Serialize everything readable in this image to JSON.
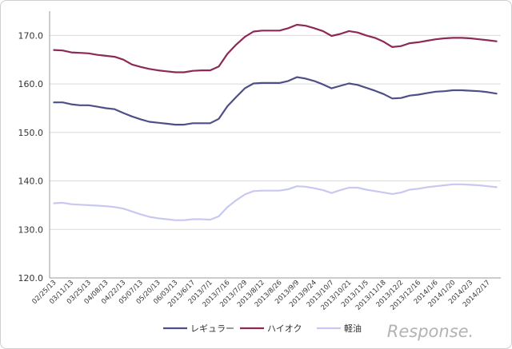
{
  "chart_data": {
    "type": "line",
    "title": "",
    "xlabel": "",
    "ylabel": "",
    "ylim": [
      120,
      175
    ],
    "yticks": [
      120.0,
      130.0,
      140.0,
      150.0,
      160.0,
      170.0
    ],
    "ytick_labels": [
      "120.0",
      "130.0",
      "140.0",
      "150.0",
      "160.0",
      "170.0"
    ],
    "grid": "horizontal",
    "legend_position": "bottom",
    "categories": [
      "02/25/13",
      "03/04/13",
      "03/11/13",
      "03/18/13",
      "03/25/13",
      "04/01/13",
      "04/08/13",
      "04/15/13",
      "04/22/13",
      "04/29/13",
      "05/07/13",
      "05/13/13",
      "05/20/13",
      "05/27/13",
      "06/03/13",
      "06/10/13",
      "2013/6/17",
      "2013/6/24",
      "2013/7/1",
      "2013/7/8",
      "2013/7/16",
      "2013/7/22",
      "2013/7/29",
      "2013/8/5",
      "2013/8/12",
      "2013/8/19",
      "2013/8/26",
      "2013/9/2",
      "2013/9/9",
      "2013/9/17",
      "2013/9/24",
      "2013/10/1",
      "2013/10/7",
      "2013/10/15",
      "2013/10/21",
      "2013/10/28",
      "2013/11/5",
      "2013/11/11",
      "2013/11/18",
      "2013/11/25",
      "2013/12/2",
      "2013/12/9",
      "2013/12/16",
      "2013/12/24",
      "2014/1/6",
      "2014/1/14",
      "2014/1/20",
      "2014/1/27",
      "2014/2/3",
      "2014/2/10",
      "2014/2/17",
      "2014/2/24"
    ],
    "xtick_labels": [
      "02/25/13",
      "03/11/13",
      "03/25/13",
      "04/08/13",
      "04/22/13",
      "05/07/13",
      "05/20/13",
      "06/03/13",
      "2013/6/17",
      "2013/7/1",
      "2013/7/16",
      "2013/7/29",
      "2013/8/12",
      "2013/8/26",
      "2013/9/9",
      "2013/9/24",
      "2013/10/7",
      "2013/10/21",
      "2013/11/5",
      "2013/11/18",
      "2013/12/2",
      "2013/12/16",
      "2014/1/6",
      "2014/1/20",
      "2014/2/3",
      "2014/2/17"
    ],
    "series": [
      {
        "name": "レギュラー",
        "color": "#4f4f87",
        "values": [
          156.2,
          156.2,
          155.8,
          155.6,
          155.6,
          155.3,
          155.0,
          154.8,
          154.0,
          153.3,
          152.7,
          152.2,
          152.0,
          151.8,
          151.6,
          151.6,
          151.9,
          151.9,
          151.9,
          152.8,
          155.4,
          157.3,
          159.1,
          160.1,
          160.2,
          160.2,
          160.2,
          160.6,
          161.4,
          161.1,
          160.6,
          159.9,
          159.1,
          159.6,
          160.1,
          159.8,
          159.2,
          158.6,
          157.9,
          157.0,
          157.1,
          157.6,
          157.8,
          158.1,
          158.4,
          158.5,
          158.7,
          158.7,
          158.6,
          158.5,
          158.3,
          158.0
        ]
      },
      {
        "name": "ハイオク",
        "color": "#8c2a55",
        "values": [
          167.0,
          166.9,
          166.5,
          166.4,
          166.3,
          166.0,
          165.8,
          165.6,
          165.0,
          164.0,
          163.5,
          163.1,
          162.8,
          162.6,
          162.4,
          162.4,
          162.7,
          162.8,
          162.8,
          163.6,
          166.2,
          168.1,
          169.7,
          170.8,
          171.0,
          171.0,
          171.0,
          171.5,
          172.2,
          172.0,
          171.5,
          170.9,
          169.9,
          170.3,
          170.9,
          170.6,
          170.0,
          169.5,
          168.7,
          167.6,
          167.8,
          168.4,
          168.6,
          168.9,
          169.2,
          169.4,
          169.5,
          169.5,
          169.4,
          169.2,
          169.0,
          168.8
        ]
      },
      {
        "name": "軽油",
        "color": "#c8c8f0",
        "values": [
          135.4,
          135.5,
          135.2,
          135.1,
          135.0,
          134.9,
          134.8,
          134.6,
          134.3,
          133.7,
          133.1,
          132.6,
          132.3,
          132.1,
          131.9,
          131.9,
          132.1,
          132.1,
          132.0,
          132.7,
          134.6,
          136.0,
          137.2,
          137.9,
          138.0,
          138.0,
          138.0,
          138.3,
          138.9,
          138.8,
          138.5,
          138.1,
          137.5,
          138.1,
          138.6,
          138.6,
          138.2,
          137.9,
          137.6,
          137.3,
          137.6,
          138.2,
          138.4,
          138.7,
          138.9,
          139.1,
          139.3,
          139.3,
          139.2,
          139.1,
          138.9,
          138.7
        ]
      }
    ]
  },
  "watermark": {
    "text": "Response."
  }
}
